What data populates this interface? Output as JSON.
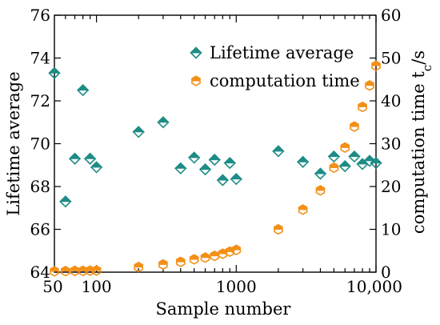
{
  "chart_data": {
    "type": "scatter",
    "xlabel": "Sample number",
    "ylabel_left": "Lifetime average",
    "ylabel_right": "computation time t",
    "ylabel_right_sub": "c",
    "ylabel_right_unit": "/s",
    "x_scale": "log",
    "xlim": [
      50,
      10000
    ],
    "xticks": [
      50,
      100,
      1000,
      10000
    ],
    "xtick_labels": [
      "50",
      "100",
      "1000",
      "10,000"
    ],
    "ylim_left": [
      64,
      76
    ],
    "yticks_left": [
      64,
      66,
      68,
      70,
      72,
      74,
      76
    ],
    "ylim_right": [
      0,
      60
    ],
    "yticks_right": [
      0,
      10,
      20,
      30,
      40,
      50,
      60
    ],
    "legend_position": "top-right",
    "grid": false,
    "series": [
      {
        "name": "Lifetime average",
        "axis": "left",
        "marker": "diamond",
        "color": "#1e8c86",
        "points": [
          [
            50,
            73.3
          ],
          [
            60,
            67.3
          ],
          [
            70,
            69.3
          ],
          [
            80,
            72.5
          ],
          [
            90,
            69.3
          ],
          [
            100,
            68.9
          ],
          [
            200,
            70.55
          ],
          [
            300,
            71.0
          ],
          [
            400,
            68.85
          ],
          [
            500,
            69.35
          ],
          [
            600,
            68.8
          ],
          [
            700,
            69.25
          ],
          [
            800,
            68.3
          ],
          [
            900,
            69.1
          ],
          [
            1000,
            68.35
          ],
          [
            2000,
            69.65
          ],
          [
            3000,
            69.15
          ],
          [
            4000,
            68.6
          ],
          [
            5000,
            69.4
          ],
          [
            6000,
            68.95
          ],
          [
            7000,
            69.4
          ],
          [
            8000,
            69.05
          ],
          [
            9000,
            69.2
          ],
          [
            10000,
            69.1
          ]
        ]
      },
      {
        "name": "computation time",
        "axis": "right",
        "marker": "hexagon",
        "color": "#f39019",
        "points": [
          [
            50,
            0.2
          ],
          [
            60,
            0.25
          ],
          [
            70,
            0.3
          ],
          [
            80,
            0.3
          ],
          [
            90,
            0.35
          ],
          [
            100,
            0.4
          ],
          [
            200,
            1.2
          ],
          [
            300,
            1.8
          ],
          [
            400,
            2.4
          ],
          [
            500,
            3.0
          ],
          [
            600,
            3.4
          ],
          [
            700,
            3.8
          ],
          [
            800,
            4.3
          ],
          [
            900,
            4.8
          ],
          [
            1000,
            5.2
          ],
          [
            2000,
            10.0
          ],
          [
            3000,
            14.6
          ],
          [
            4000,
            19.1
          ],
          [
            5000,
            24.4
          ],
          [
            6000,
            29.1
          ],
          [
            7000,
            34.0
          ],
          [
            8000,
            38.6
          ],
          [
            9000,
            43.6
          ],
          [
            10000,
            48.2
          ]
        ]
      }
    ]
  }
}
